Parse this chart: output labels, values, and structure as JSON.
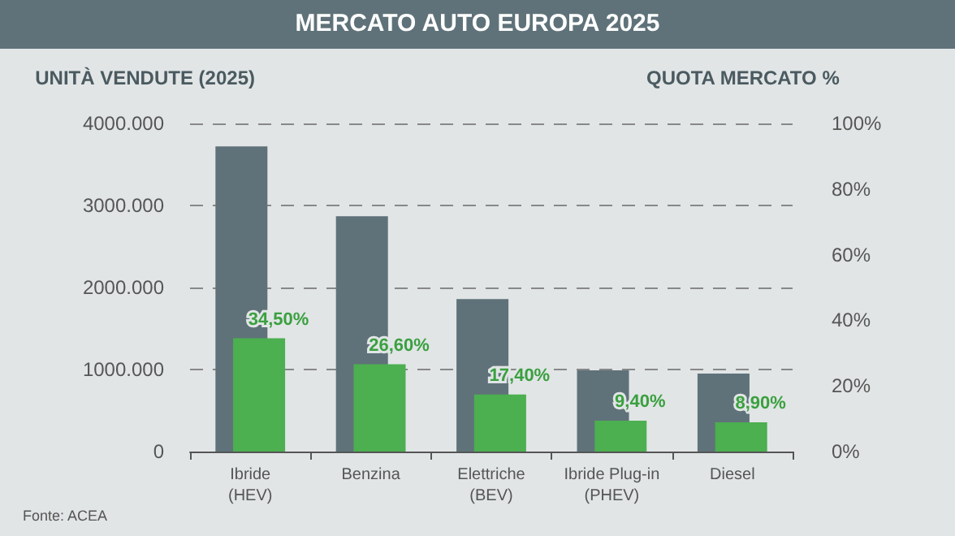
{
  "chart_data": {
    "type": "bar",
    "title": "MERCATO AUTO EUROPA 2025",
    "ylabel": "UNITÀ VENDUTE (2025)",
    "y2label": "QUOTA MERCATO %",
    "categories": [
      "Ibride\n(HEV)",
      "Benzina",
      "Elettriche\n(BEV)",
      "Ibride Plug-in\n(PHEV)",
      "Diesel"
    ],
    "series": [
      {
        "color": "#5f7279",
        "values": [
          3720,
          2870,
          1860,
          990,
          950
        ]
      },
      {
        "color": "#4caf50",
        "axis": "y2",
        "values": [
          34.5,
          26.6,
          17.4,
          9.4,
          8.9
        ],
        "value_labels": [
          "34,50%",
          "26,60%",
          "17,40%",
          "9,40%",
          "8,90%"
        ]
      }
    ],
    "ylim": [
      0,
      4000
    ],
    "yticks": [
      0,
      {
        "value": 1000,
        "label": "1000.000"
      },
      {
        "value": 2000,
        "label": "2000.000"
      },
      {
        "value": 3000,
        "label": "3000.000"
      },
      {
        "value": 4000,
        "label": "4000.000"
      }
    ],
    "y2lim": [
      0,
      100
    ],
    "y2ticks": [
      {
        "value": 0,
        "label": "0%"
      },
      {
        "value": 20,
        "label": "20%"
      },
      {
        "value": 40,
        "label": "40%"
      },
      {
        "value": 60,
        "label": "60%"
      },
      {
        "value": 80,
        "label": "80%"
      },
      {
        "value": 100,
        "label": "100%"
      }
    ],
    "grid": "y",
    "annotations": [
      "Fonte: ACEA"
    ]
  }
}
